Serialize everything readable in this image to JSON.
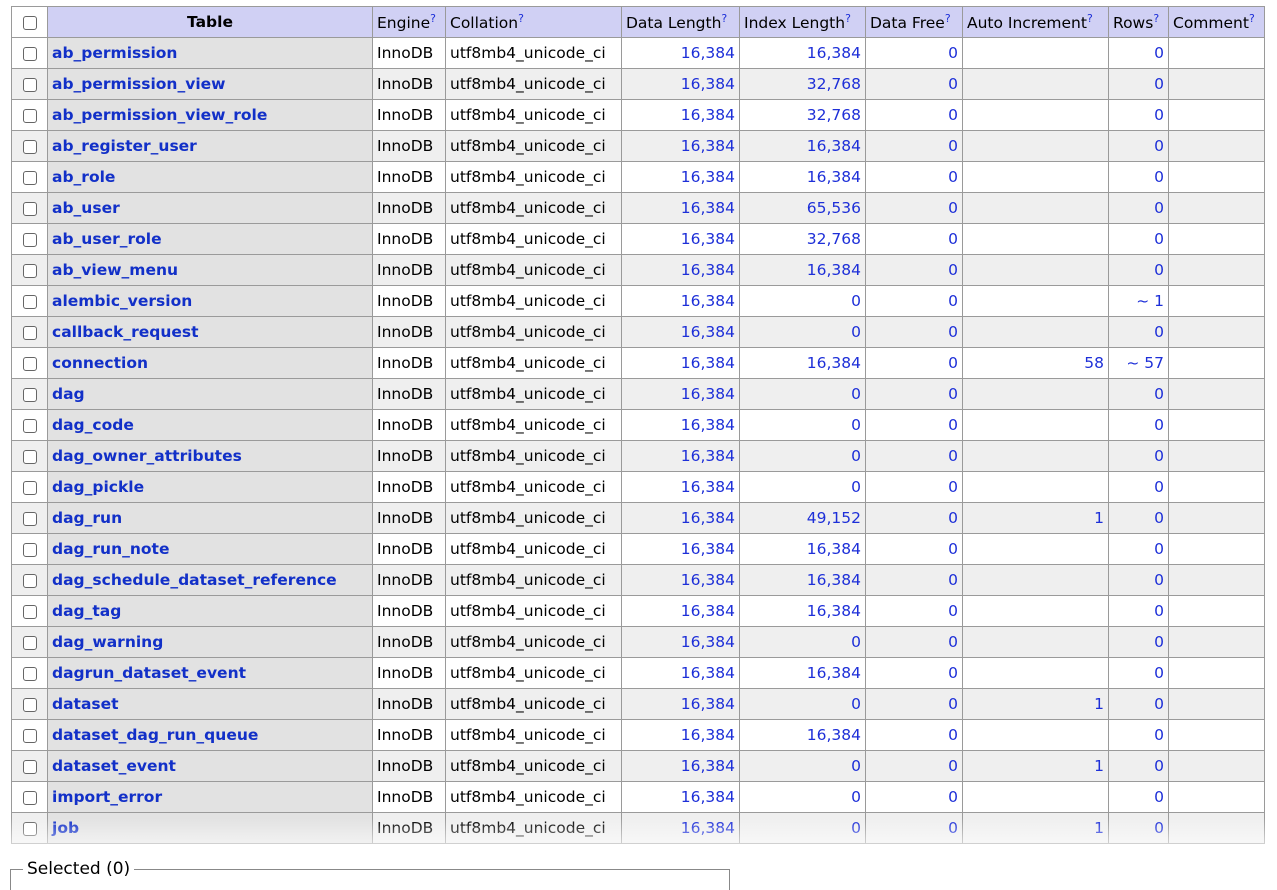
{
  "columns": {
    "table": "Table",
    "engine": "Engine",
    "collation": "Collation",
    "data_length": "Data Length",
    "index_length": "Index Length",
    "data_free": "Data Free",
    "auto_increment": "Auto Increment",
    "rows": "Rows",
    "comment": "Comment",
    "help_mark": "?"
  },
  "rows": [
    {
      "name": "ab_permission",
      "engine": "InnoDB",
      "collation": "utf8mb4_unicode_ci",
      "data_length": "16,384",
      "index_length": "16,384",
      "data_free": "0",
      "auto_increment": "",
      "rows": "0",
      "comment": ""
    },
    {
      "name": "ab_permission_view",
      "engine": "InnoDB",
      "collation": "utf8mb4_unicode_ci",
      "data_length": "16,384",
      "index_length": "32,768",
      "data_free": "0",
      "auto_increment": "",
      "rows": "0",
      "comment": ""
    },
    {
      "name": "ab_permission_view_role",
      "engine": "InnoDB",
      "collation": "utf8mb4_unicode_ci",
      "data_length": "16,384",
      "index_length": "32,768",
      "data_free": "0",
      "auto_increment": "",
      "rows": "0",
      "comment": ""
    },
    {
      "name": "ab_register_user",
      "engine": "InnoDB",
      "collation": "utf8mb4_unicode_ci",
      "data_length": "16,384",
      "index_length": "16,384",
      "data_free": "0",
      "auto_increment": "",
      "rows": "0",
      "comment": ""
    },
    {
      "name": "ab_role",
      "engine": "InnoDB",
      "collation": "utf8mb4_unicode_ci",
      "data_length": "16,384",
      "index_length": "16,384",
      "data_free": "0",
      "auto_increment": "",
      "rows": "0",
      "comment": ""
    },
    {
      "name": "ab_user",
      "engine": "InnoDB",
      "collation": "utf8mb4_unicode_ci",
      "data_length": "16,384",
      "index_length": "65,536",
      "data_free": "0",
      "auto_increment": "",
      "rows": "0",
      "comment": ""
    },
    {
      "name": "ab_user_role",
      "engine": "InnoDB",
      "collation": "utf8mb4_unicode_ci",
      "data_length": "16,384",
      "index_length": "32,768",
      "data_free": "0",
      "auto_increment": "",
      "rows": "0",
      "comment": ""
    },
    {
      "name": "ab_view_menu",
      "engine": "InnoDB",
      "collation": "utf8mb4_unicode_ci",
      "data_length": "16,384",
      "index_length": "16,384",
      "data_free": "0",
      "auto_increment": "",
      "rows": "0",
      "comment": ""
    },
    {
      "name": "alembic_version",
      "engine": "InnoDB",
      "collation": "utf8mb4_unicode_ci",
      "data_length": "16,384",
      "index_length": "0",
      "data_free": "0",
      "auto_increment": "",
      "rows": "~ 1",
      "comment": ""
    },
    {
      "name": "callback_request",
      "engine": "InnoDB",
      "collation": "utf8mb4_unicode_ci",
      "data_length": "16,384",
      "index_length": "0",
      "data_free": "0",
      "auto_increment": "",
      "rows": "0",
      "comment": ""
    },
    {
      "name": "connection",
      "engine": "InnoDB",
      "collation": "utf8mb4_unicode_ci",
      "data_length": "16,384",
      "index_length": "16,384",
      "data_free": "0",
      "auto_increment": "58",
      "rows": "~ 57",
      "comment": ""
    },
    {
      "name": "dag",
      "engine": "InnoDB",
      "collation": "utf8mb4_unicode_ci",
      "data_length": "16,384",
      "index_length": "0",
      "data_free": "0",
      "auto_increment": "",
      "rows": "0",
      "comment": ""
    },
    {
      "name": "dag_code",
      "engine": "InnoDB",
      "collation": "utf8mb4_unicode_ci",
      "data_length": "16,384",
      "index_length": "0",
      "data_free": "0",
      "auto_increment": "",
      "rows": "0",
      "comment": ""
    },
    {
      "name": "dag_owner_attributes",
      "engine": "InnoDB",
      "collation": "utf8mb4_unicode_ci",
      "data_length": "16,384",
      "index_length": "0",
      "data_free": "0",
      "auto_increment": "",
      "rows": "0",
      "comment": ""
    },
    {
      "name": "dag_pickle",
      "engine": "InnoDB",
      "collation": "utf8mb4_unicode_ci",
      "data_length": "16,384",
      "index_length": "0",
      "data_free": "0",
      "auto_increment": "",
      "rows": "0",
      "comment": ""
    },
    {
      "name": "dag_run",
      "engine": "InnoDB",
      "collation": "utf8mb4_unicode_ci",
      "data_length": "16,384",
      "index_length": "49,152",
      "data_free": "0",
      "auto_increment": "1",
      "rows": "0",
      "comment": ""
    },
    {
      "name": "dag_run_note",
      "engine": "InnoDB",
      "collation": "utf8mb4_unicode_ci",
      "data_length": "16,384",
      "index_length": "16,384",
      "data_free": "0",
      "auto_increment": "",
      "rows": "0",
      "comment": ""
    },
    {
      "name": "dag_schedule_dataset_reference",
      "engine": "InnoDB",
      "collation": "utf8mb4_unicode_ci",
      "data_length": "16,384",
      "index_length": "16,384",
      "data_free": "0",
      "auto_increment": "",
      "rows": "0",
      "comment": ""
    },
    {
      "name": "dag_tag",
      "engine": "InnoDB",
      "collation": "utf8mb4_unicode_ci",
      "data_length": "16,384",
      "index_length": "16,384",
      "data_free": "0",
      "auto_increment": "",
      "rows": "0",
      "comment": ""
    },
    {
      "name": "dag_warning",
      "engine": "InnoDB",
      "collation": "utf8mb4_unicode_ci",
      "data_length": "16,384",
      "index_length": "0",
      "data_free": "0",
      "auto_increment": "",
      "rows": "0",
      "comment": ""
    },
    {
      "name": "dagrun_dataset_event",
      "engine": "InnoDB",
      "collation": "utf8mb4_unicode_ci",
      "data_length": "16,384",
      "index_length": "16,384",
      "data_free": "0",
      "auto_increment": "",
      "rows": "0",
      "comment": ""
    },
    {
      "name": "dataset",
      "engine": "InnoDB",
      "collation": "utf8mb4_unicode_ci",
      "data_length": "16,384",
      "index_length": "0",
      "data_free": "0",
      "auto_increment": "1",
      "rows": "0",
      "comment": ""
    },
    {
      "name": "dataset_dag_run_queue",
      "engine": "InnoDB",
      "collation": "utf8mb4_unicode_ci",
      "data_length": "16,384",
      "index_length": "16,384",
      "data_free": "0",
      "auto_increment": "",
      "rows": "0",
      "comment": ""
    },
    {
      "name": "dataset_event",
      "engine": "InnoDB",
      "collation": "utf8mb4_unicode_ci",
      "data_length": "16,384",
      "index_length": "0",
      "data_free": "0",
      "auto_increment": "1",
      "rows": "0",
      "comment": ""
    },
    {
      "name": "import_error",
      "engine": "InnoDB",
      "collation": "utf8mb4_unicode_ci",
      "data_length": "16,384",
      "index_length": "0",
      "data_free": "0",
      "auto_increment": "",
      "rows": "0",
      "comment": ""
    },
    {
      "name": "job",
      "engine": "InnoDB",
      "collation": "utf8mb4_unicode_ci",
      "data_length": "16,384",
      "index_length": "0",
      "data_free": "0",
      "auto_increment": "1",
      "rows": "0",
      "comment": ""
    }
  ],
  "footer": {
    "selected_label": "Selected (0)"
  },
  "colors": {
    "header_bg": "#d0d0f4",
    "link": "#1230c8",
    "number": "#1d2fd8"
  }
}
